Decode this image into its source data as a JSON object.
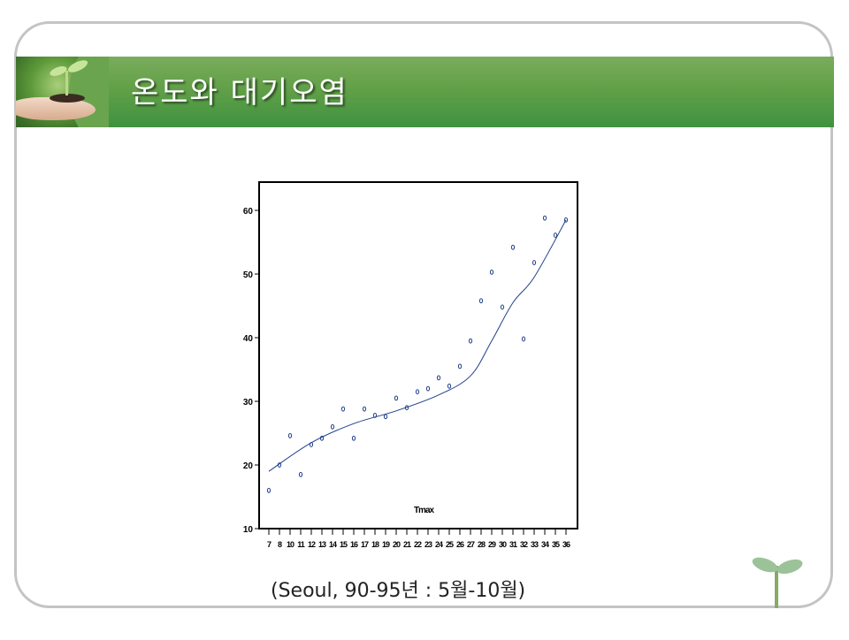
{
  "slide": {
    "title": "온도와 대기오염",
    "caption": "(Seoul, 90-95년 : 5월-10월)",
    "accent_color": "#5a9c46"
  },
  "chart_data": {
    "type": "scatter",
    "title": "",
    "xlabel": "",
    "ylabel": "",
    "annotation": "Tmax",
    "x_tick_labels": [
      "7",
      "8",
      "10",
      "11",
      "12",
      "13",
      "14",
      "15",
      "16",
      "17",
      "18",
      "19",
      "20",
      "21",
      "22",
      "23",
      "24",
      "25",
      "26",
      "27",
      "28",
      "29",
      "30",
      "31",
      "32",
      "33",
      "34",
      "35",
      "36"
    ],
    "y_ticks": [
      10,
      20,
      30,
      40,
      50,
      60
    ],
    "ylim": [
      10,
      65
    ],
    "grid": false,
    "series": [
      {
        "name": "observations",
        "marker": "o",
        "color": "#1f3f8a",
        "x": [
          7,
          8,
          10,
          11,
          12,
          13,
          14,
          15,
          16,
          17,
          18,
          19,
          20,
          21,
          22,
          23,
          24,
          25,
          26,
          27,
          28,
          29,
          30,
          31,
          32,
          33,
          34,
          35,
          36
        ],
        "y": [
          16.0,
          20.0,
          24.6,
          18.5,
          23.2,
          24.2,
          26.0,
          28.8,
          24.2,
          28.8,
          27.8,
          27.6,
          30.5,
          29.0,
          31.5,
          32.0,
          33.7,
          32.4,
          35.5,
          39.5,
          45.8,
          50.3,
          44.8,
          54.2,
          39.8,
          51.8,
          58.8,
          56.1,
          58.5
        ]
      },
      {
        "name": "smoothed fit",
        "type": "line",
        "color": "#1f3f8a",
        "x_index": [
          0,
          4,
          8,
          12,
          16,
          19,
          21,
          23,
          25,
          28
        ],
        "y": [
          19.0,
          23.5,
          26.5,
          28.5,
          31.0,
          34.0,
          39.5,
          45.5,
          49.5,
          58.5
        ]
      }
    ]
  }
}
